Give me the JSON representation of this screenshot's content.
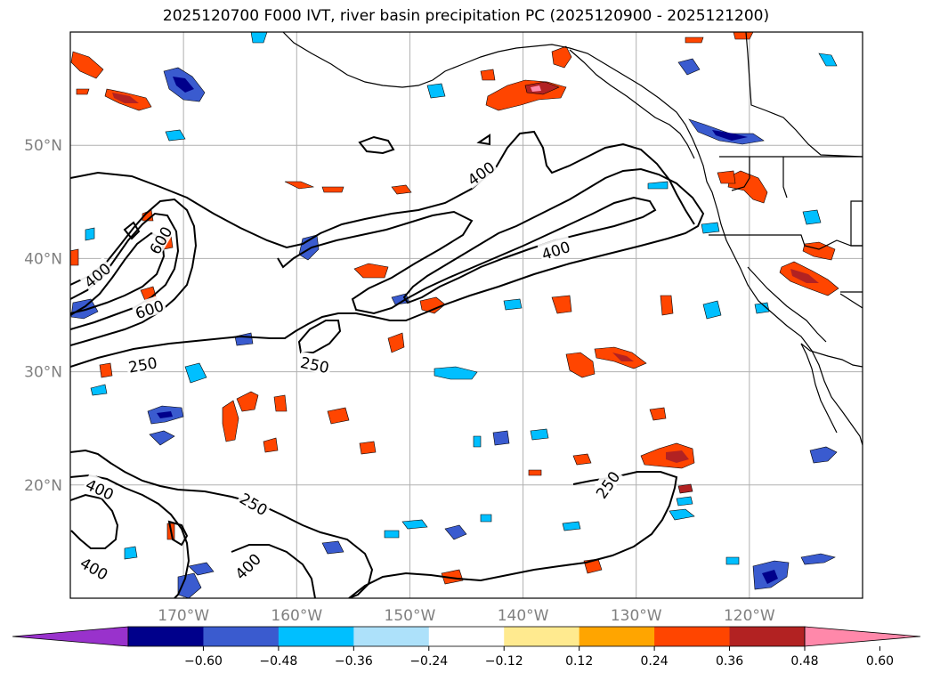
{
  "title": "2025120700 F000 IVT, river basin precipitation PC (2025120900 - 2025121200)",
  "map": {
    "lon_range": [
      -180,
      -110
    ],
    "lat_range": [
      10,
      60
    ],
    "lon_ticks": [
      {
        "lon": -170,
        "label": "170°W"
      },
      {
        "lon": -160,
        "label": "160°W"
      },
      {
        "lon": -150,
        "label": "150°W"
      },
      {
        "lon": -140,
        "label": "140°W"
      },
      {
        "lon": -130,
        "label": "130°W"
      },
      {
        "lon": -120,
        "label": "120°W"
      }
    ],
    "lat_ticks": [
      {
        "lat": 50,
        "label": "50°N"
      },
      {
        "lat": 40,
        "label": "40°N"
      },
      {
        "lat": 30,
        "label": "30°N"
      },
      {
        "lat": 20,
        "label": "20°N"
      }
    ],
    "grid": true,
    "contour_labels": [
      {
        "text": "400",
        "lon": -143.7,
        "lat": 47.5,
        "angle": -35
      },
      {
        "text": "400",
        "lon": -137.1,
        "lat": 40.7,
        "angle": -18
      },
      {
        "text": "600",
        "lon": -172.0,
        "lat": 41.6,
        "angle": -60
      },
      {
        "text": "400",
        "lon": -177.6,
        "lat": 38.5,
        "angle": -40
      },
      {
        "text": "600",
        "lon": -173.0,
        "lat": 35.5,
        "angle": -18
      },
      {
        "text": "250",
        "lon": -173.6,
        "lat": 30.6,
        "angle": -10
      },
      {
        "text": "250",
        "lon": -158.4,
        "lat": 30.6,
        "angle": 12
      },
      {
        "text": "400",
        "lon": -177.4,
        "lat": 19.6,
        "angle": 25
      },
      {
        "text": "250",
        "lon": -163.8,
        "lat": 18.3,
        "angle": 30
      },
      {
        "text": "400",
        "lon": -177.9,
        "lat": 12.6,
        "angle": 30
      },
      {
        "text": "400",
        "lon": -164.3,
        "lat": 12.8,
        "angle": -45
      },
      {
        "text": "250",
        "lon": -132.5,
        "lat": 20.0,
        "angle": -55
      }
    ]
  },
  "colorbar": {
    "colors": [
      "#9932CC",
      "#00008B",
      "#3A5BCF",
      "#00BFFF",
      "#ADE1FA",
      "#FFFFFF",
      "#FFEA8F",
      "#FFA500",
      "#FF4500",
      "#B22222",
      "#FF88AA"
    ],
    "ticks": [
      "−0.60",
      "−0.48",
      "−0.36",
      "−0.24",
      "−0.12",
      "0.12",
      "0.24",
      "0.36",
      "0.48",
      "0.60"
    ],
    "extend": "both"
  }
}
